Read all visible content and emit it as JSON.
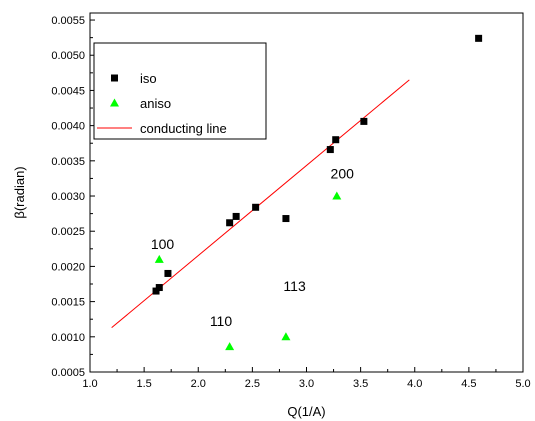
{
  "chart_data": {
    "type": "scatter",
    "xlabel": "Q(1/A)",
    "ylabel": "β(radian)",
    "xlim": [
      1.0,
      5.0
    ],
    "ylim": [
      0.0005,
      0.0056
    ],
    "x_ticks": [
      1.0,
      1.5,
      2.0,
      2.5,
      3.0,
      3.5,
      4.0,
      4.5,
      5.0
    ],
    "x_tick_labels": [
      "1.0",
      "1.5",
      "2.0",
      "2.5",
      "3.0",
      "3.5",
      "4.0",
      "4.5",
      "5.0"
    ],
    "y_ticks": [
      0.0005,
      0.001,
      0.0015,
      0.002,
      0.0025,
      0.003,
      0.0035,
      0.004,
      0.0045,
      0.005,
      0.0055
    ],
    "y_tick_labels": [
      "0.0005",
      "0.0010",
      "0.0015",
      "0.0020",
      "0.0025",
      "0.0030",
      "0.0035",
      "0.0040",
      "0.0045",
      "0.0050",
      "0.0055"
    ],
    "grid": false,
    "legend_position": "top-left",
    "series": [
      {
        "name": "iso",
        "marker": "square",
        "color": "#000000",
        "x": [
          1.61,
          1.64,
          1.72,
          2.29,
          2.35,
          2.53,
          2.81,
          3.22,
          3.27,
          3.53,
          4.59
        ],
        "y": [
          0.00165,
          0.0017,
          0.0019,
          0.00262,
          0.00271,
          0.00284,
          0.00268,
          0.00366,
          0.0038,
          0.00406,
          0.00524
        ]
      },
      {
        "name": "aniso",
        "marker": "triangle",
        "color": "#00ff00",
        "x": [
          1.64,
          2.29,
          2.81,
          3.28
        ],
        "y": [
          0.0021,
          0.00086,
          0.001,
          0.003
        ]
      },
      {
        "name": "conducting line",
        "marker": "line",
        "color": "#ff0000",
        "x": [
          1.2,
          3.95
        ],
        "y": [
          0.00113,
          0.00465
        ]
      }
    ],
    "annotations": [
      {
        "text": "100",
        "x": 1.67,
        "y": 0.00225
      },
      {
        "text": "110",
        "x": 2.21,
        "y": 0.00115
      },
      {
        "text": "113",
        "x": 2.89,
        "y": 0.00165
      },
      {
        "text": "200",
        "x": 3.33,
        "y": 0.00325
      }
    ]
  }
}
